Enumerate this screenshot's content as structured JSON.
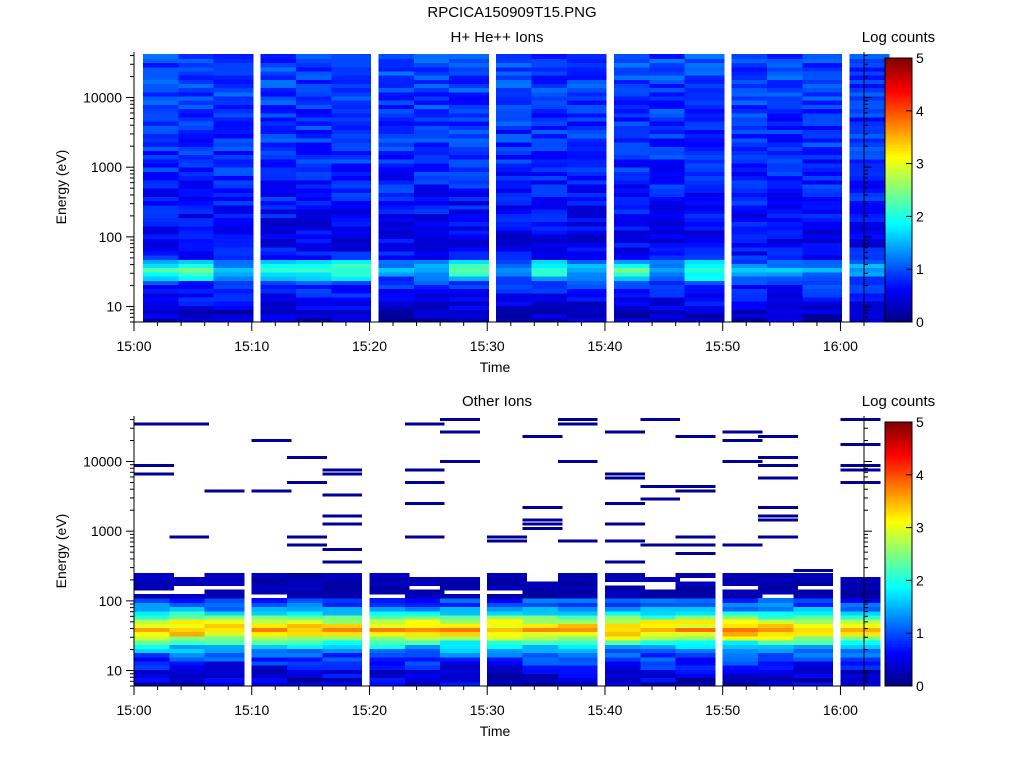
{
  "title": "RPCICA150909T15.PNG",
  "chart_data": [
    {
      "type": "heatmap",
      "title": "H+ He++ Ions",
      "xlabel": "Time",
      "ylabel": "Energy (eV)",
      "x_ticks": [
        "15:00",
        "15:10",
        "15:20",
        "15:30",
        "15:40",
        "15:50",
        "16:00"
      ],
      "x_range": [
        "15:00",
        "16:02"
      ],
      "y_scale": "log",
      "y_ticks": [
        "10",
        "100",
        "1000",
        "10000"
      ],
      "y_range": [
        6,
        45000
      ],
      "colorbar": {
        "label": "Log counts",
        "range": [
          0,
          5
        ],
        "ticks": [
          "0",
          "1",
          "2",
          "3",
          "4",
          "5"
        ]
      },
      "x_columns": [
        "15:00",
        "15:03",
        "15:06",
        "15:10",
        "15:13",
        "15:16",
        "15:20",
        "15:23",
        "15:26",
        "15:30",
        "15:33",
        "15:36",
        "15:40",
        "15:43",
        "15:46",
        "15:50",
        "15:53",
        "15:56",
        "16:00"
      ],
      "profile_log_counts_by_energy": [
        {
          "energy_eV": 8,
          "log_counts": 0.35
        },
        {
          "energy_eV": 12,
          "log_counts": 0.6
        },
        {
          "energy_eV": 18,
          "log_counts": 0.75
        },
        {
          "energy_eV": 25,
          "log_counts": 1.0
        },
        {
          "energy_eV": 35,
          "log_counts": 1.65
        },
        {
          "energy_eV": 50,
          "log_counts": 0.75
        },
        {
          "energy_eV": 80,
          "log_counts": 0.55
        },
        {
          "energy_eV": 150,
          "log_counts": 0.6
        },
        {
          "energy_eV": 500,
          "log_counts": 0.75
        },
        {
          "energy_eV": 2000,
          "log_counts": 0.85
        },
        {
          "energy_eV": 10000,
          "log_counts": 0.9
        },
        {
          "energy_eV": 30000,
          "log_counts": 0.95
        }
      ]
    },
    {
      "type": "heatmap",
      "title": "Other Ions",
      "xlabel": "Time",
      "ylabel": "Energy (eV)",
      "x_ticks": [
        "15:00",
        "15:10",
        "15:20",
        "15:30",
        "15:40",
        "15:50",
        "16:00"
      ],
      "x_range": [
        "15:00",
        "16:02"
      ],
      "y_scale": "log",
      "y_ticks": [
        "10",
        "100",
        "1000",
        "10000"
      ],
      "y_range": [
        6,
        45000
      ],
      "colorbar": {
        "label": "Log counts",
        "range": [
          0,
          5
        ],
        "ticks": [
          "0",
          "1",
          "2",
          "3",
          "4",
          "5"
        ]
      },
      "x_columns": [
        "15:00",
        "15:03",
        "15:06",
        "15:10",
        "15:13",
        "15:16",
        "15:20",
        "15:23",
        "15:26",
        "15:30",
        "15:33",
        "15:36",
        "15:40",
        "15:43",
        "15:46",
        "15:50",
        "15:53",
        "15:56",
        "16:00"
      ],
      "profile_log_counts_by_energy": [
        {
          "energy_eV": 8,
          "log_counts": 0.4
        },
        {
          "energy_eV": 12,
          "log_counts": 0.7
        },
        {
          "energy_eV": 18,
          "log_counts": 1.1
        },
        {
          "energy_eV": 25,
          "log_counts": 2.0
        },
        {
          "energy_eV": 30,
          "log_counts": 2.8
        },
        {
          "energy_eV": 38,
          "log_counts": 3.6
        },
        {
          "energy_eV": 50,
          "log_counts": 3.0
        },
        {
          "energy_eV": 80,
          "log_counts": 1.2
        },
        {
          "energy_eV": 150,
          "log_counts": 0.5
        },
        {
          "energy_eV": 400,
          "log_counts": 0.0
        },
        {
          "energy_eV": 10000,
          "log_counts": 0.0
        }
      ],
      "sparse_high_energy_counts_log": 0.1
    }
  ]
}
